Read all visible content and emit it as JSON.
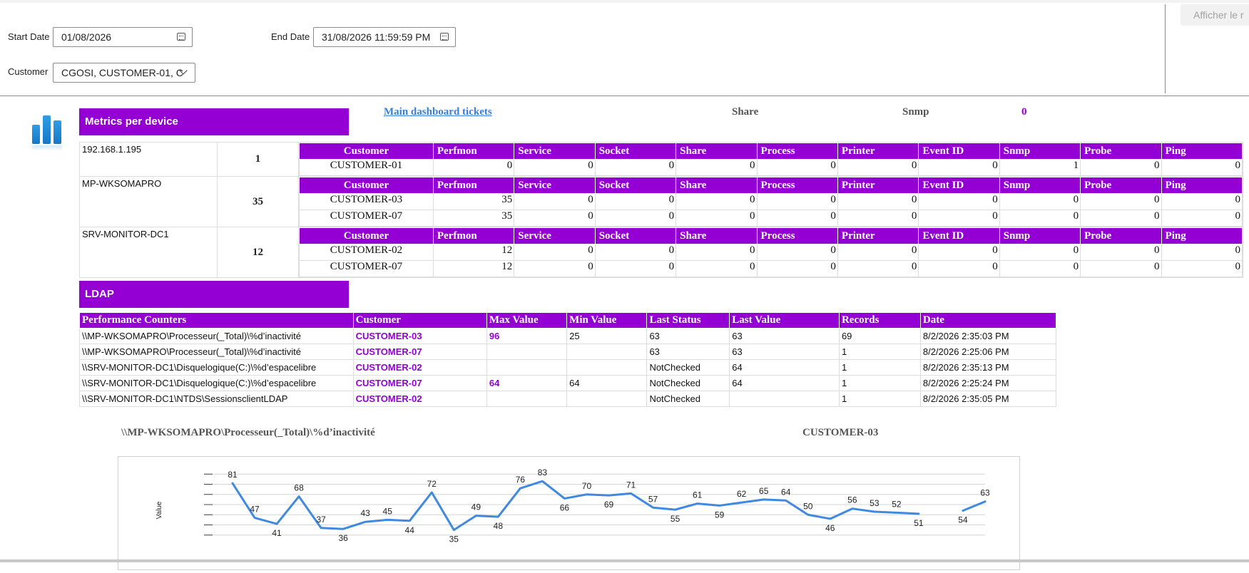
{
  "filters": {
    "start_label": "Start Date",
    "start_value": "01/08/2026",
    "end_label": "End Date",
    "end_value": "31/08/2026 11:59:59 PM",
    "customer_label": "Customer",
    "customer_value": "CGOSI, CUSTOMER-01, C",
    "show_button": "Afficher le r"
  },
  "metrics": {
    "title": "Metrics per device",
    "dashboard_link": "Main dashboard tickets",
    "share_label": "Share",
    "snmp_label": "Snmp",
    "snmp_value": "0",
    "columns": [
      "Customer",
      "Perfmon",
      "Service",
      "Socket",
      "Share",
      "Process",
      "Printer",
      "Event ID",
      "Snmp",
      "Probe",
      "Ping"
    ],
    "devices": [
      {
        "name": "192.168.1.195",
        "count": "1",
        "rows": [
          [
            "CUSTOMER-01",
            "0",
            "0",
            "0",
            "0",
            "0",
            "0",
            "0",
            "1",
            "0",
            "0"
          ]
        ]
      },
      {
        "name": "MP-WKSOMAPRO",
        "count": "35",
        "rows": [
          [
            "CUSTOMER-03",
            "35",
            "0",
            "0",
            "0",
            "0",
            "0",
            "0",
            "0",
            "0",
            "0"
          ],
          [
            "CUSTOMER-07",
            "35",
            "0",
            "0",
            "0",
            "0",
            "0",
            "0",
            "0",
            "0",
            "0"
          ]
        ]
      },
      {
        "name": "SRV-MONITOR-DC1",
        "count": "12",
        "rows": [
          [
            "CUSTOMER-02",
            "12",
            "0",
            "0",
            "0",
            "0",
            "0",
            "0",
            "0",
            "0",
            "0"
          ],
          [
            "CUSTOMER-07",
            "12",
            "0",
            "0",
            "0",
            "0",
            "0",
            "0",
            "0",
            "0",
            "0"
          ]
        ]
      }
    ]
  },
  "ldap": {
    "title": "LDAP",
    "columns": [
      "Performance Counters",
      "Customer",
      "Max Value",
      "Min Value",
      "Last Status",
      "Last Value",
      "Records",
      "Date"
    ],
    "rows": [
      [
        "\\\\MP-WKSOMAPRO\\Processeur(_Total)\\%d’inactivité",
        "CUSTOMER-03",
        "96",
        "25",
        "63",
        "63",
        "69",
        "8/2/2026 2:35:03 PM"
      ],
      [
        "\\\\MP-WKSOMAPRO\\Processeur(_Total)\\%d’inactivité",
        "CUSTOMER-07",
        "",
        "",
        "63",
        "63",
        "1",
        "8/2/2026 2:25:06 PM"
      ],
      [
        "\\\\SRV-MONITOR-DC1\\Disquelogique(C:)\\%d’espacelibre",
        "CUSTOMER-02",
        "",
        "",
        "NotChecked",
        "64",
        "1",
        "8/2/2026 2:35:13 PM"
      ],
      [
        "\\\\SRV-MONITOR-DC1\\Disquelogique(C:)\\%d’espacelibre",
        "CUSTOMER-07",
        "64",
        "64",
        "NotChecked",
        "64",
        "1",
        "8/2/2026 2:25:24 PM"
      ],
      [
        "\\\\SRV-MONITOR-DC1\\NTDS\\SessionsclientLDAP",
        "CUSTOMER-02",
        "",
        "",
        "NotChecked",
        "",
        "1",
        "8/2/2026 2:35:05 PM"
      ]
    ]
  },
  "chart": {
    "counter_title": "\\\\MP-WKSOMAPRO\\Processeur(_Total)\\%d’inactivité",
    "customer_title": "CUSTOMER-03"
  },
  "chart_data": {
    "type": "line",
    "title": "\\\\MP-WKSOMAPRO\\Processeur(_Total)\\%d’inactivité",
    "ylabel": "Value",
    "ylim": [
      20,
      100
    ],
    "grid": true,
    "color": "#3f8ae0",
    "series": [
      {
        "values": [
          81,
          47,
          41,
          68,
          37,
          36,
          43,
          45,
          44,
          72,
          35,
          49,
          48,
          76,
          83,
          66,
          70,
          69,
          71,
          57,
          55,
          61,
          59,
          62,
          65,
          64,
          50,
          46,
          56,
          53,
          52,
          51,
          null,
          54,
          63
        ]
      }
    ]
  }
}
